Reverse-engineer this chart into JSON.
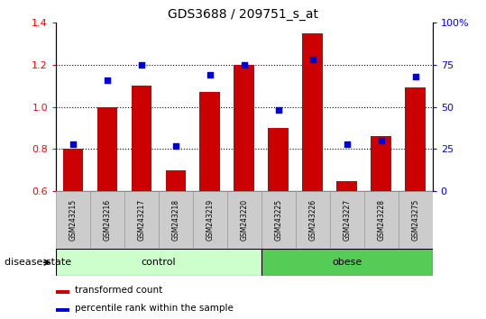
{
  "title": "GDS3688 / 209751_s_at",
  "samples": [
    "GSM243215",
    "GSM243216",
    "GSM243217",
    "GSM243218",
    "GSM243219",
    "GSM243220",
    "GSM243225",
    "GSM243226",
    "GSM243227",
    "GSM243228",
    "GSM243275"
  ],
  "transformed_count": [
    0.8,
    1.0,
    1.1,
    0.7,
    1.07,
    1.2,
    0.9,
    1.35,
    0.65,
    0.86,
    1.09
  ],
  "percentile_rank": [
    28,
    66,
    75,
    27,
    69,
    75,
    48,
    78,
    28,
    30,
    68
  ],
  "groups": [
    "control",
    "control",
    "control",
    "control",
    "control",
    "control",
    "obese",
    "obese",
    "obese",
    "obese",
    "obese"
  ],
  "ylim_left": [
    0.6,
    1.4
  ],
  "ylim_right": [
    0,
    100
  ],
  "y_ticks_left": [
    0.6,
    0.8,
    1.0,
    1.2,
    1.4
  ],
  "y_ticks_right": [
    0,
    25,
    50,
    75,
    100
  ],
  "bar_color": "#cc0000",
  "dot_color": "#0000cc",
  "control_color": "#ccffcc",
  "obese_color": "#55cc55",
  "sample_box_color": "#cccccc",
  "label_bar": "transformed count",
  "label_dot": "percentile rank within the sample",
  "group_label": "disease state",
  "grid_lines": [
    0.8,
    1.0,
    1.2
  ]
}
